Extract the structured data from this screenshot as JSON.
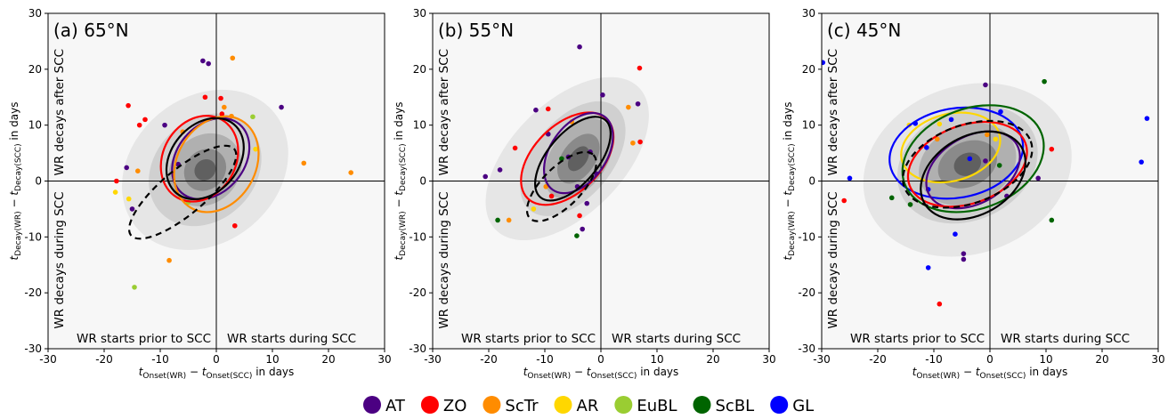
{
  "legend": [
    {
      "name": "AT",
      "color": "#4b0082"
    },
    {
      "name": "ZO",
      "color": "#ff0000"
    },
    {
      "name": "ScTr",
      "color": "#ff8c00"
    },
    {
      "name": "AR",
      "color": "#ffd700"
    },
    {
      "name": "EuBL",
      "color": "#9acd32"
    },
    {
      "name": "ScBL",
      "color": "#006400"
    },
    {
      "name": "GL",
      "color": "#0000ff"
    }
  ],
  "chart_data": [
    {
      "type": "scatter",
      "title": "(a) 65°N",
      "xlabel": [
        "t",
        "Onset(WR)",
        " − ",
        "t",
        "Onset(SCC)",
        " in days"
      ],
      "ylabel": [
        "t",
        "Decay(WR)",
        " − ",
        "t",
        "Decay(SCC)",
        " in days"
      ],
      "annotations": [
        "WR decays after SCC",
        "WR decays during SCC",
        "WR starts prior to SCC",
        "WR starts during SCC"
      ],
      "xlim": [
        -30,
        30
      ],
      "ylim": [
        -30,
        30
      ],
      "xticks": [
        -30,
        -20,
        -10,
        0,
        10,
        20,
        30
      ],
      "yticks": [
        -30,
        -20,
        -10,
        0,
        10,
        20,
        30
      ],
      "density": [
        {
          "color": "#e6e6e6",
          "cx": -2,
          "cy": 2,
          "rx": 16,
          "ry": 13,
          "angle": 40
        },
        {
          "color": "#d0d0d0",
          "cx": -2,
          "cy": 2,
          "rx": 11,
          "ry": 9,
          "angle": 45
        },
        {
          "color": "#b0b0b0",
          "cx": -2,
          "cy": 2,
          "rx": 7,
          "ry": 6,
          "angle": 45
        },
        {
          "color": "#8a8a8a",
          "cx": -2,
          "cy": 2,
          "rx": 4,
          "ry": 3.5,
          "angle": 45
        },
        {
          "color": "#606060",
          "cx": -2,
          "cy": 2,
          "rx": 2,
          "ry": 1.8,
          "angle": 45
        }
      ],
      "series": [
        {
          "name": "AT",
          "color": "#4b0082",
          "x": [
            -2.4,
            -1.4,
            11.6,
            -9.2,
            -16,
            -6.8,
            -15
          ],
          "y": [
            21.5,
            21,
            13.2,
            10,
            2.4,
            3,
            -5
          ]
        },
        {
          "name": "ZO",
          "color": "#ff0000",
          "x": [
            -15.7,
            -12.7,
            -13.7,
            -17.8,
            3.3,
            -2,
            0.8,
            1
          ],
          "y": [
            13.5,
            11,
            10,
            0,
            -8,
            15,
            14.8,
            12
          ]
        },
        {
          "name": "ScTr",
          "color": "#ff8c00",
          "x": [
            2.9,
            1.4,
            15.6,
            24,
            -8.4,
            2.7,
            -14,
            -6
          ],
          "y": [
            22,
            13.2,
            3.2,
            1.5,
            -14.2,
            11.6,
            1.8,
            8.8
          ]
        },
        {
          "name": "AR",
          "color": "#ffd700",
          "x": [
            -18,
            -15.6,
            7
          ],
          "y": [
            -2,
            -3.2,
            5.7
          ]
        },
        {
          "name": "EuBL",
          "color": "#9acd32",
          "x": [
            -14.6,
            6.5,
            -5
          ],
          "y": [
            -19,
            11.5,
            -3.8
          ]
        }
      ],
      "ellipses": [
        {
          "color": "#4b0082",
          "dashed": false,
          "cx": -1,
          "cy": 4,
          "rx": 8,
          "ry": 6,
          "angle": 50
        },
        {
          "color": "#ff0000",
          "dashed": false,
          "cx": -3,
          "cy": 4,
          "rx": 8,
          "ry": 6.5,
          "angle": 60
        },
        {
          "color": "#ff8c00",
          "dashed": false,
          "cx": 0,
          "cy": 3,
          "rx": 9,
          "ry": 7,
          "angle": 60
        },
        {
          "color": "#000000",
          "dashed": false,
          "cx": -2,
          "cy": 4,
          "rx": 8,
          "ry": 6,
          "angle": 50
        },
        {
          "color": "#000000",
          "dashed": true,
          "cx": -6,
          "cy": -2,
          "rx": 12,
          "ry": 4,
          "angle": 40
        }
      ]
    },
    {
      "type": "scatter",
      "title": "(b) 55°N",
      "xlabel": [
        "t",
        "Onset(WR)",
        " − ",
        "t",
        "Onset(SCC)",
        " in days"
      ],
      "ylabel": [
        "t",
        "Decay(WR)",
        " − ",
        "t",
        "Decay(SCC)",
        " in days"
      ],
      "annotations": [
        "WR decays after SCC",
        "WR decays during SCC",
        "WR starts prior to SCC",
        "WR starts during SCC"
      ],
      "xlim": [
        -30,
        30
      ],
      "ylim": [
        -30,
        30
      ],
      "xticks": [
        -30,
        -20,
        -10,
        0,
        10,
        20,
        30
      ],
      "yticks": [
        -30,
        -20,
        -10,
        0,
        10,
        20,
        30
      ],
      "density": [
        {
          "color": "#e6e6e6",
          "cx": -6,
          "cy": 4,
          "rx": 18,
          "ry": 10,
          "angle": 45
        },
        {
          "color": "#d0d0d0",
          "cx": -5,
          "cy": 4,
          "rx": 12,
          "ry": 7,
          "angle": 50
        },
        {
          "color": "#b0b0b0",
          "cx": -4,
          "cy": 4,
          "rx": 8,
          "ry": 5,
          "angle": 55
        },
        {
          "color": "#8a8a8a",
          "cx": -4,
          "cy": 4,
          "rx": 5,
          "ry": 3,
          "angle": 55
        },
        {
          "color": "#606060",
          "cx": -4,
          "cy": 4,
          "rx": 2.5,
          "ry": 1.5,
          "angle": 55
        }
      ],
      "series": [
        {
          "name": "AT",
          "color": "#4b0082",
          "x": [
            -3.8,
            0.3,
            6.6,
            -11.6,
            -18,
            -20.6,
            -5.8,
            -4.2,
            -2.5,
            -3.3,
            -9.4,
            -1.9,
            -0.8
          ],
          "y": [
            24,
            15.4,
            13.8,
            12.7,
            2,
            0.8,
            4.3,
            -1,
            -4,
            -8.6,
            8.4,
            5.2,
            1.3
          ]
        },
        {
          "name": "ZO",
          "color": "#ff0000",
          "x": [
            6.9,
            7,
            -15.3,
            -8.8,
            -3.8,
            -9.4
          ],
          "y": [
            20.2,
            7,
            5.9,
            -2.7,
            -6.2,
            12.9
          ]
        },
        {
          "name": "ScTr",
          "color": "#ff8c00",
          "x": [
            4.9,
            5.7,
            -16.4,
            -9.8,
            -5.2
          ],
          "y": [
            13.2,
            6.8,
            -7,
            -1,
            10.6
          ]
        },
        {
          "name": "AR",
          "color": "#ffd700",
          "x": [
            -12
          ],
          "y": [
            -5
          ]
        },
        {
          "name": "ScBL",
          "color": "#006400",
          "x": [
            -18.4,
            -4.3,
            -7
          ],
          "y": [
            -7,
            -9.8,
            4
          ]
        }
      ],
      "ellipses": [
        {
          "color": "#ff0000",
          "dashed": false,
          "cx": -6,
          "cy": 4,
          "rx": 10,
          "ry": 6,
          "angle": 45
        },
        {
          "color": "#4b0082",
          "dashed": false,
          "cx": -4,
          "cy": 5,
          "rx": 8,
          "ry": 5,
          "angle": 55
        },
        {
          "color": "#000000",
          "dashed": false,
          "cx": -5,
          "cy": 4,
          "rx": 9,
          "ry": 4.5,
          "angle": 50
        },
        {
          "color": "#000000",
          "dashed": true,
          "cx": -7,
          "cy": -1,
          "rx": 8,
          "ry": 3.5,
          "angle": 45
        }
      ]
    },
    {
      "type": "scatter",
      "title": "(c) 45°N",
      "xlabel": [
        "t",
        "Onset(WR)",
        " − ",
        "t",
        "Onset(SCC)",
        " in days"
      ],
      "ylabel": [
        "t",
        "Decay(WR)",
        " − ",
        "t",
        "Decay(SCC)",
        " in days"
      ],
      "annotations": [
        "WR decays after SCC",
        "WR decays during SCC",
        "WR starts prior to SCC",
        "WR starts during SCC"
      ],
      "xlim": [
        -30,
        30
      ],
      "ylim": [
        -30,
        30
      ],
      "xticks": [
        -30,
        -20,
        -10,
        0,
        10,
        20,
        30
      ],
      "yticks": [
        -30,
        -20,
        -10,
        0,
        10,
        20,
        30
      ],
      "density": [
        {
          "color": "#e6e6e6",
          "cx": -4,
          "cy": 2,
          "rx": 19,
          "ry": 15,
          "angle": 20
        },
        {
          "color": "#d0d0d0",
          "cx": -4,
          "cy": 3,
          "rx": 13,
          "ry": 10,
          "angle": 25
        },
        {
          "color": "#b0b0b0",
          "cx": -4,
          "cy": 3,
          "rx": 9,
          "ry": 7,
          "angle": 25
        },
        {
          "color": "#8a8a8a",
          "cx": -4,
          "cy": 3,
          "rx": 5.5,
          "ry": 4,
          "angle": 25
        },
        {
          "color": "#606060",
          "cx": -4,
          "cy": 3,
          "rx": 2.5,
          "ry": 2,
          "angle": 25
        }
      ],
      "series": [
        {
          "name": "GL",
          "color": "#0000ff",
          "x": [
            -29.8,
            28,
            27,
            -25,
            -13.3,
            -11.3,
            -6.9,
            1.9,
            -3.6,
            -6.2,
            -11,
            -11
          ],
          "y": [
            21.2,
            11.2,
            3.4,
            0.5,
            10.3,
            6,
            11,
            12.4,
            4,
            -9.5,
            -15.5,
            -1.5
          ]
        },
        {
          "name": "ZO",
          "color": "#ff0000",
          "x": [
            -26,
            -9,
            11
          ],
          "y": [
            -3.5,
            -22,
            5.7
          ]
        },
        {
          "name": "AT",
          "color": "#4b0082",
          "x": [
            -0.8,
            -4.7,
            -4.7,
            8.6,
            -0.8,
            3
          ],
          "y": [
            17.2,
            -13,
            -14,
            0.5,
            3.6,
            -2.7
          ]
        },
        {
          "name": "ScTr",
          "color": "#ff8c00",
          "x": [
            -9.4,
            -0.5
          ],
          "y": [
            7.5,
            8.3
          ]
        },
        {
          "name": "AR",
          "color": "#ffd700",
          "x": [
            -14.4,
            -9,
            1
          ],
          "y": [
            10,
            10.2,
            7.5
          ]
        },
        {
          "name": "ScBL",
          "color": "#006400",
          "x": [
            9.7,
            11,
            -17.5,
            -14.2,
            1.7
          ],
          "y": [
            17.8,
            -7,
            -3,
            -4.2,
            2.8
          ]
        }
      ],
      "ellipses": [
        {
          "color": "#0000ff",
          "dashed": false,
          "cx": -6,
          "cy": 5,
          "rx": 12,
          "ry": 8,
          "angle": 10
        },
        {
          "color": "#ffd700",
          "dashed": false,
          "cx": -7,
          "cy": 6,
          "rx": 9,
          "ry": 6,
          "angle": 15
        },
        {
          "color": "#006400",
          "dashed": false,
          "cx": -3,
          "cy": 4,
          "rx": 13,
          "ry": 9,
          "angle": 20
        },
        {
          "color": "#4b0082",
          "dashed": false,
          "cx": -3,
          "cy": 2,
          "rx": 9,
          "ry": 6,
          "angle": 30
        },
        {
          "color": "#ff0000",
          "dashed": false,
          "cx": -4,
          "cy": 3,
          "rx": 11,
          "ry": 7,
          "angle": 20
        },
        {
          "color": "#000000",
          "dashed": false,
          "cx": -3,
          "cy": 1,
          "rx": 10,
          "ry": 7,
          "angle": 30
        },
        {
          "color": "#000000",
          "dashed": true,
          "cx": -4,
          "cy": 3,
          "rx": 12,
          "ry": 7,
          "angle": 20
        }
      ]
    }
  ]
}
